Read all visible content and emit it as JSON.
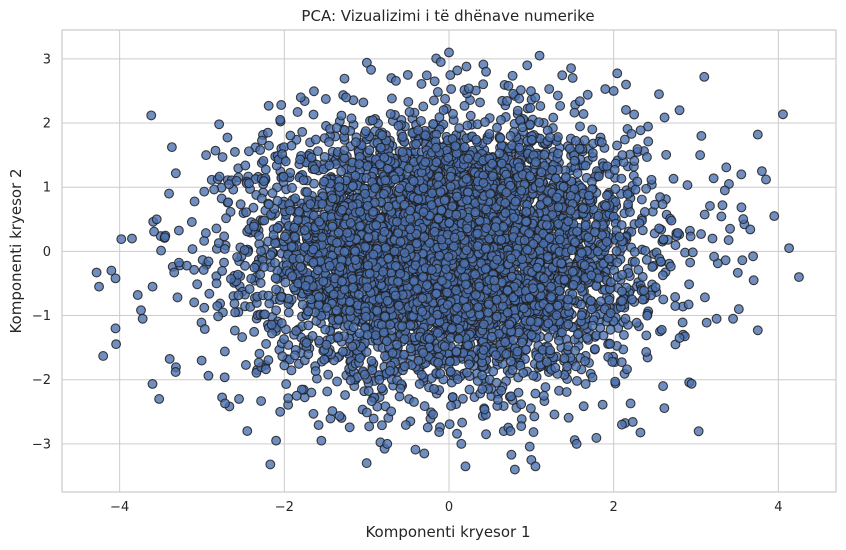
{
  "chart_data": {
    "type": "scatter",
    "title": "PCA: Vizualizimi i të dhënave numerike",
    "xlabel": "Komponenti kryesor 1",
    "ylabel": "Komponenti kryesor 2",
    "xlim": [
      -4.7,
      4.7
    ],
    "ylim": [
      -3.75,
      3.45
    ],
    "xticks": [
      -4,
      -2,
      0,
      2,
      4
    ],
    "yticks": [
      -3,
      -2,
      -1,
      0,
      1,
      2,
      3
    ],
    "grid": true,
    "marker_color": "#4c72b0",
    "marker_edge_color": "#1f1f1f",
    "marker_alpha": 0.8,
    "generated_cloud": {
      "count": 6500,
      "x_std": 1.12,
      "y_std": 0.98,
      "seed": 12345
    },
    "points": [
      [
        -4.28,
        -0.33
      ],
      [
        -4.25,
        -0.55
      ],
      [
        -4.1,
        -0.3
      ],
      [
        -4.05,
        -0.42
      ],
      [
        -3.98,
        0.19
      ],
      [
        -3.85,
        0.2
      ],
      [
        -3.78,
        -0.68
      ],
      [
        -3.72,
        -1.05
      ],
      [
        -3.6,
        -0.55
      ],
      [
        -3.55,
        0.5
      ],
      [
        -3.52,
        -2.3
      ],
      [
        -3.45,
        0.22
      ],
      [
        -3.32,
        -1.88
      ],
      [
        -4.05,
        -1.2
      ],
      [
        -4.2,
        -1.63
      ],
      [
        -3.4,
        0.9
      ],
      [
        -2.95,
        1.5
      ],
      [
        -2.75,
        1.47
      ],
      [
        -2.6,
        1.55
      ],
      [
        -2.55,
        -2.3
      ],
      [
        -2.45,
        -2.8
      ],
      [
        -2.72,
        -2.37
      ],
      [
        -2.17,
        -3.32
      ],
      [
        -2.1,
        -2.95
      ],
      [
        -2.05,
        -2.5
      ],
      [
        -1.85,
        -2.25
      ],
      [
        -1.55,
        -2.95
      ],
      [
        -1.0,
        -3.3
      ],
      [
        -0.75,
        -3.0
      ],
      [
        -0.3,
        -3.15
      ],
      [
        0.15,
        -3.0
      ],
      [
        0.2,
        -3.35
      ],
      [
        0.8,
        -3.4
      ],
      [
        1.0,
        -3.25
      ],
      [
        1.05,
        -3.35
      ],
      [
        1.55,
        -3.0
      ],
      [
        0.45,
        -2.85
      ],
      [
        2.1,
        -2.7
      ],
      [
        2.6,
        -2.1
      ],
      [
        2.75,
        -1.45
      ],
      [
        2.8,
        -1.35
      ],
      [
        3.25,
        -1.05
      ],
      [
        3.45,
        -1.05
      ],
      [
        3.52,
        -0.9
      ],
      [
        3.75,
        -1.23
      ],
      [
        3.7,
        -0.45
      ],
      [
        4.25,
        -0.4
      ],
      [
        4.13,
        0.05
      ],
      [
        3.95,
        0.55
      ],
      [
        3.85,
        1.12
      ],
      [
        3.8,
        1.25
      ],
      [
        3.75,
        1.82
      ],
      [
        3.55,
        1.2
      ],
      [
        3.4,
        1.05
      ],
      [
        3.05,
        1.5
      ],
      [
        3.1,
        2.72
      ],
      [
        2.8,
        2.2
      ],
      [
        2.55,
        2.45
      ],
      [
        2.15,
        2.6
      ],
      [
        2.0,
        2.5
      ],
      [
        1.1,
        3.05
      ],
      [
        0.0,
        3.1
      ],
      [
        -0.1,
        2.95
      ],
      [
        0.95,
        2.9
      ],
      [
        0.45,
        2.8
      ],
      [
        -0.5,
        2.75
      ],
      [
        -1.25,
        2.4
      ],
      [
        -1.8,
        2.4
      ],
      [
        -2.2,
        1.85
      ],
      [
        -2.05,
        2.05
      ],
      [
        3.2,
        0.2
      ],
      [
        3.35,
        0.95
      ]
    ]
  }
}
